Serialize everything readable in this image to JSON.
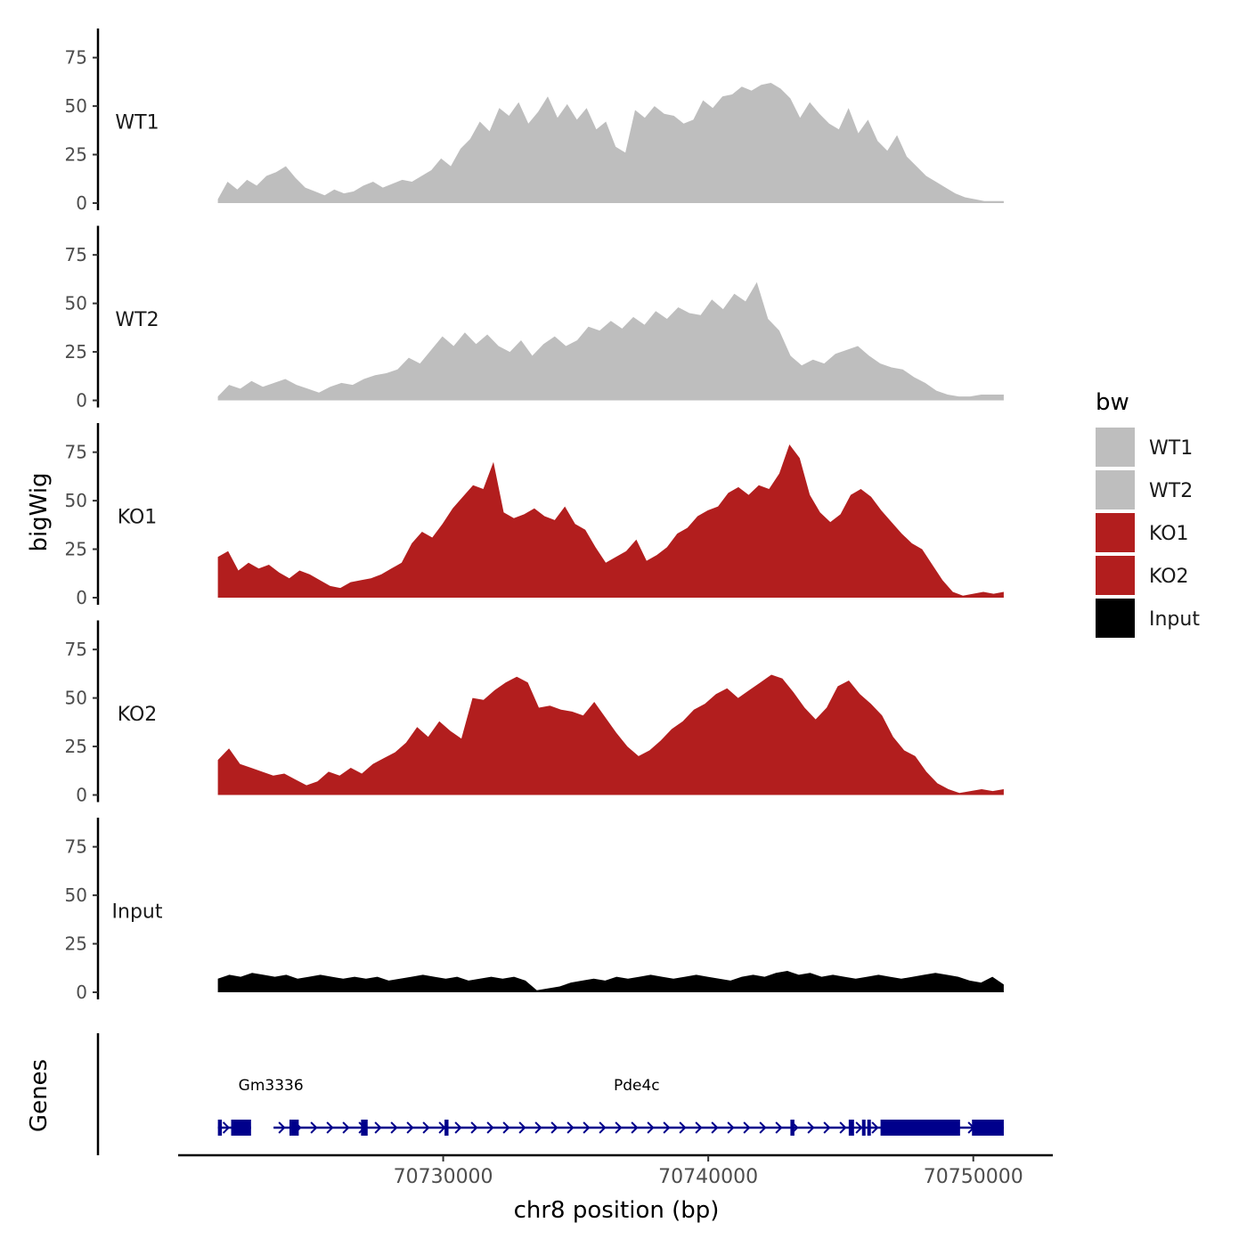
{
  "chart_data": {
    "type": "area",
    "ylabel": "bigWig",
    "xlabel": "chr8 position (bp)",
    "chromosome": "chr8",
    "xlim": [
      70720000,
      70753000
    ],
    "signal_x_range": [
      70721500,
      70751150
    ],
    "x_ticks": [
      70730000,
      70740000,
      70750000
    ],
    "x_tick_labels": [
      "70730000",
      "70740000",
      "70750000"
    ],
    "ylim": [
      0,
      90
    ],
    "y_ticks": [
      0,
      25,
      50,
      75
    ],
    "y_tick_labels": [
      "0",
      "25",
      "50",
      "75"
    ],
    "series": [
      {
        "name": "WT1",
        "color": "#bebebe",
        "values": [
          2,
          11,
          7,
          12,
          9,
          14,
          16,
          19,
          13,
          8,
          6,
          4,
          7,
          5,
          6,
          9,
          11,
          8,
          10,
          12,
          11,
          14,
          17,
          23,
          19,
          28,
          33,
          42,
          37,
          49,
          45,
          52,
          41,
          47,
          55,
          44,
          51,
          43,
          49,
          38,
          42,
          29,
          26,
          48,
          44,
          50,
          46,
          45,
          41,
          43,
          53,
          49,
          55,
          56,
          60,
          58,
          61,
          62,
          59,
          54,
          44,
          52,
          46,
          41,
          38,
          49,
          36,
          43,
          32,
          27,
          35,
          24,
          19,
          14,
          11,
          8,
          5,
          3,
          2,
          1,
          1,
          1
        ]
      },
      {
        "name": "WT2",
        "color": "#bebebe",
        "values": [
          2,
          8,
          6,
          10,
          7,
          9,
          11,
          8,
          6,
          4,
          7,
          9,
          8,
          11,
          13,
          14,
          16,
          22,
          19,
          26,
          33,
          28,
          35,
          29,
          34,
          28,
          25,
          31,
          23,
          29,
          33,
          28,
          31,
          38,
          36,
          41,
          37,
          43,
          39,
          46,
          42,
          48,
          45,
          44,
          52,
          47,
          55,
          51,
          61,
          42,
          36,
          23,
          18,
          21,
          19,
          24,
          26,
          28,
          23,
          19,
          17,
          16,
          12,
          9,
          5,
          3,
          2,
          2,
          3,
          3,
          3
        ]
      },
      {
        "name": "KO1",
        "color": "#b21e1e",
        "values": [
          21,
          24,
          14,
          18,
          15,
          17,
          13,
          10,
          14,
          12,
          9,
          6,
          5,
          8,
          9,
          10,
          12,
          15,
          18,
          28,
          34,
          31,
          38,
          46,
          52,
          58,
          56,
          70,
          44,
          41,
          43,
          46,
          42,
          40,
          47,
          38,
          35,
          26,
          18,
          21,
          24,
          30,
          19,
          22,
          26,
          33,
          36,
          42,
          45,
          47,
          54,
          57,
          53,
          58,
          56,
          64,
          79,
          72,
          53,
          44,
          39,
          43,
          53,
          56,
          52,
          45,
          39,
          33,
          28,
          25,
          17,
          9,
          3,
          1,
          2,
          3,
          2,
          3
        ]
      },
      {
        "name": "KO2",
        "color": "#b21e1e",
        "values": [
          18,
          24,
          16,
          14,
          12,
          10,
          11,
          8,
          5,
          7,
          12,
          10,
          14,
          11,
          16,
          19,
          22,
          27,
          35,
          30,
          38,
          33,
          29,
          50,
          49,
          54,
          58,
          61,
          58,
          45,
          46,
          44,
          43,
          41,
          48,
          40,
          32,
          25,
          20,
          23,
          28,
          34,
          38,
          44,
          47,
          52,
          55,
          50,
          54,
          58,
          62,
          60,
          53,
          45,
          39,
          45,
          56,
          59,
          52,
          47,
          41,
          30,
          23,
          20,
          12,
          6,
          3,
          1,
          2,
          3,
          2,
          3
        ]
      },
      {
        "name": "Input",
        "color": "#000000",
        "values": [
          7,
          9,
          8,
          10,
          9,
          8,
          9,
          7,
          8,
          9,
          8,
          7,
          8,
          7,
          8,
          6,
          7,
          8,
          9,
          8,
          7,
          8,
          6,
          7,
          8,
          7,
          8,
          6,
          1,
          2,
          3,
          5,
          6,
          7,
          6,
          8,
          7,
          8,
          9,
          8,
          7,
          8,
          9,
          8,
          7,
          6,
          8,
          9,
          8,
          10,
          11,
          9,
          10,
          8,
          9,
          8,
          7,
          8,
          9,
          8,
          7,
          8,
          9,
          10,
          9,
          8,
          6,
          5,
          8,
          4
        ]
      }
    ],
    "legend_title": "bw",
    "legend_position": "right",
    "legend_entries": [
      {
        "label": "WT1",
        "color": "#bebebe"
      },
      {
        "label": "WT2",
        "color": "#bebebe"
      },
      {
        "label": "KO1",
        "color": "#b21e1e"
      },
      {
        "label": "KO2",
        "color": "#b21e1e"
      },
      {
        "label": "Input",
        "color": "#000000"
      }
    ],
    "genes_track": {
      "title": "Genes",
      "color": "#00008b",
      "strand": "+",
      "genes": [
        {
          "name": "Gm3336",
          "start": 70721500,
          "end": 70722750,
          "label_x": 70723500,
          "exons": [
            [
              70721500,
              70721650
            ],
            [
              70722000,
              70722750
            ]
          ]
        },
        {
          "name": "Pde4c",
          "start": 70723600,
          "end": 70751150,
          "label_x": 70737300,
          "exons": [
            [
              70724200,
              70724550
            ],
            [
              70726900,
              70727150
            ],
            [
              70730050,
              70730200
            ],
            [
              70743100,
              70743250
            ],
            [
              70745300,
              70745500
            ],
            [
              70745800,
              70745900
            ],
            [
              70746000,
              70746100
            ],
            [
              70746500,
              70749500
            ],
            [
              70749950,
              70751150
            ]
          ]
        }
      ]
    }
  }
}
